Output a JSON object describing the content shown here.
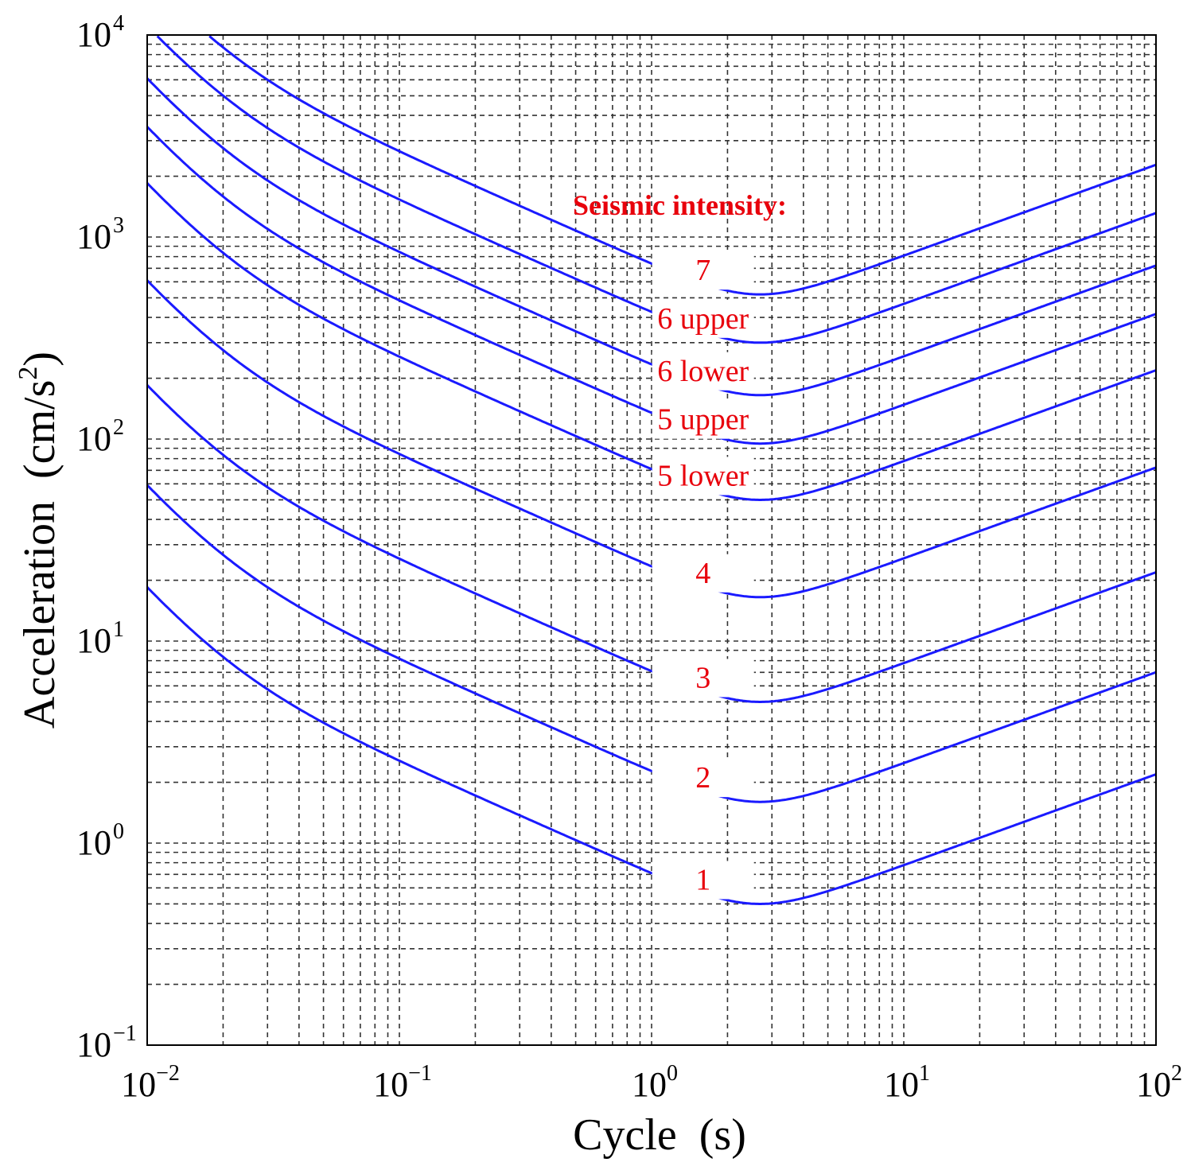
{
  "chart_data": {
    "type": "line",
    "title": "",
    "xlabel": "Cycle  (s)",
    "ylabel": "Acceleration  (cm/s",
    "ylabel_sup": "2",
    "ylabel_close": ")",
    "xscale": "log",
    "yscale": "log",
    "xlim": [
      0.01,
      100
    ],
    "ylim": [
      0.1,
      10000
    ],
    "grid": true,
    "x_ticks": [
      {
        "base": "10",
        "exp": "−2"
      },
      {
        "base": "10",
        "exp": "−1"
      },
      {
        "base": "10",
        "exp": "0"
      },
      {
        "base": "10",
        "exp": "1"
      },
      {
        "base": "10",
        "exp": "2"
      }
    ],
    "y_ticks": [
      {
        "base": "10",
        "exp": "−1"
      },
      {
        "base": "10",
        "exp": "0"
      },
      {
        "base": "10",
        "exp": "1"
      },
      {
        "base": "10",
        "exp": "2"
      },
      {
        "base": "10",
        "exp": "3"
      },
      {
        "base": "10",
        "exp": "4"
      }
    ],
    "legend_title": "Seismic intensity:",
    "curve_shape": {
      "minimum_period": 1.6,
      "left_asymptote_slope": -3,
      "mid_slope": -0.55,
      "right_slope": 1,
      "left_knee_factor": 0.06,
      "right_knee_factor": 1.6
    },
    "series": [
      {
        "name": "1",
        "label": "1",
        "min_value": 0.5
      },
      {
        "name": "2",
        "label": "2",
        "min_value": 1.6
      },
      {
        "name": "3",
        "label": "3",
        "min_value": 5.0
      },
      {
        "name": "4",
        "label": "4",
        "min_value": 16.5
      },
      {
        "name": "5 lower",
        "label": "5 lower",
        "min_value": 50
      },
      {
        "name": "5 upper",
        "label": "5 upper",
        "min_value": 95
      },
      {
        "name": "6 lower",
        "label": "6 lower",
        "min_value": 165
      },
      {
        "name": "6 upper",
        "label": "6 upper",
        "min_value": 300
      },
      {
        "name": "7",
        "label": "7",
        "min_value": 520
      }
    ],
    "colors": {
      "curve": "#1a1aff",
      "label": "#e8000b",
      "grid": "#333333"
    }
  }
}
